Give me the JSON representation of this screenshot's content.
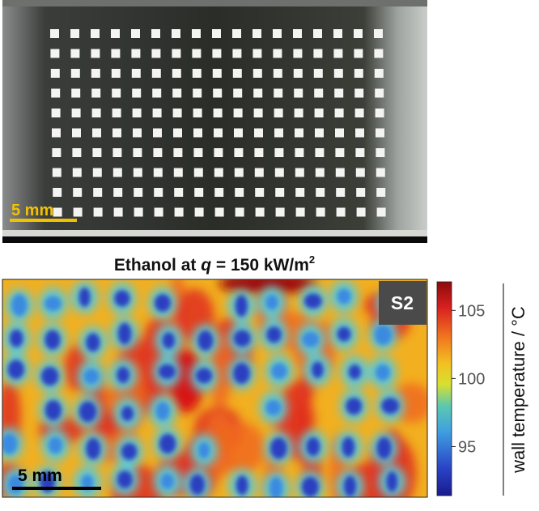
{
  "photo": {
    "scale_bar": "5 mm"
  },
  "heatmap": {
    "title": {
      "prefix": "Ethanol at ",
      "variable": "q",
      "rest": " = 150 kW/m",
      "superscript": "2"
    },
    "sample_label": "S2",
    "scale_bar": "5 mm",
    "colorbar": {
      "label": "wall temperature / °C",
      "clim": [
        91.4,
        107.1
      ],
      "ticks": [
        95,
        100,
        105
      ]
    }
  }
}
